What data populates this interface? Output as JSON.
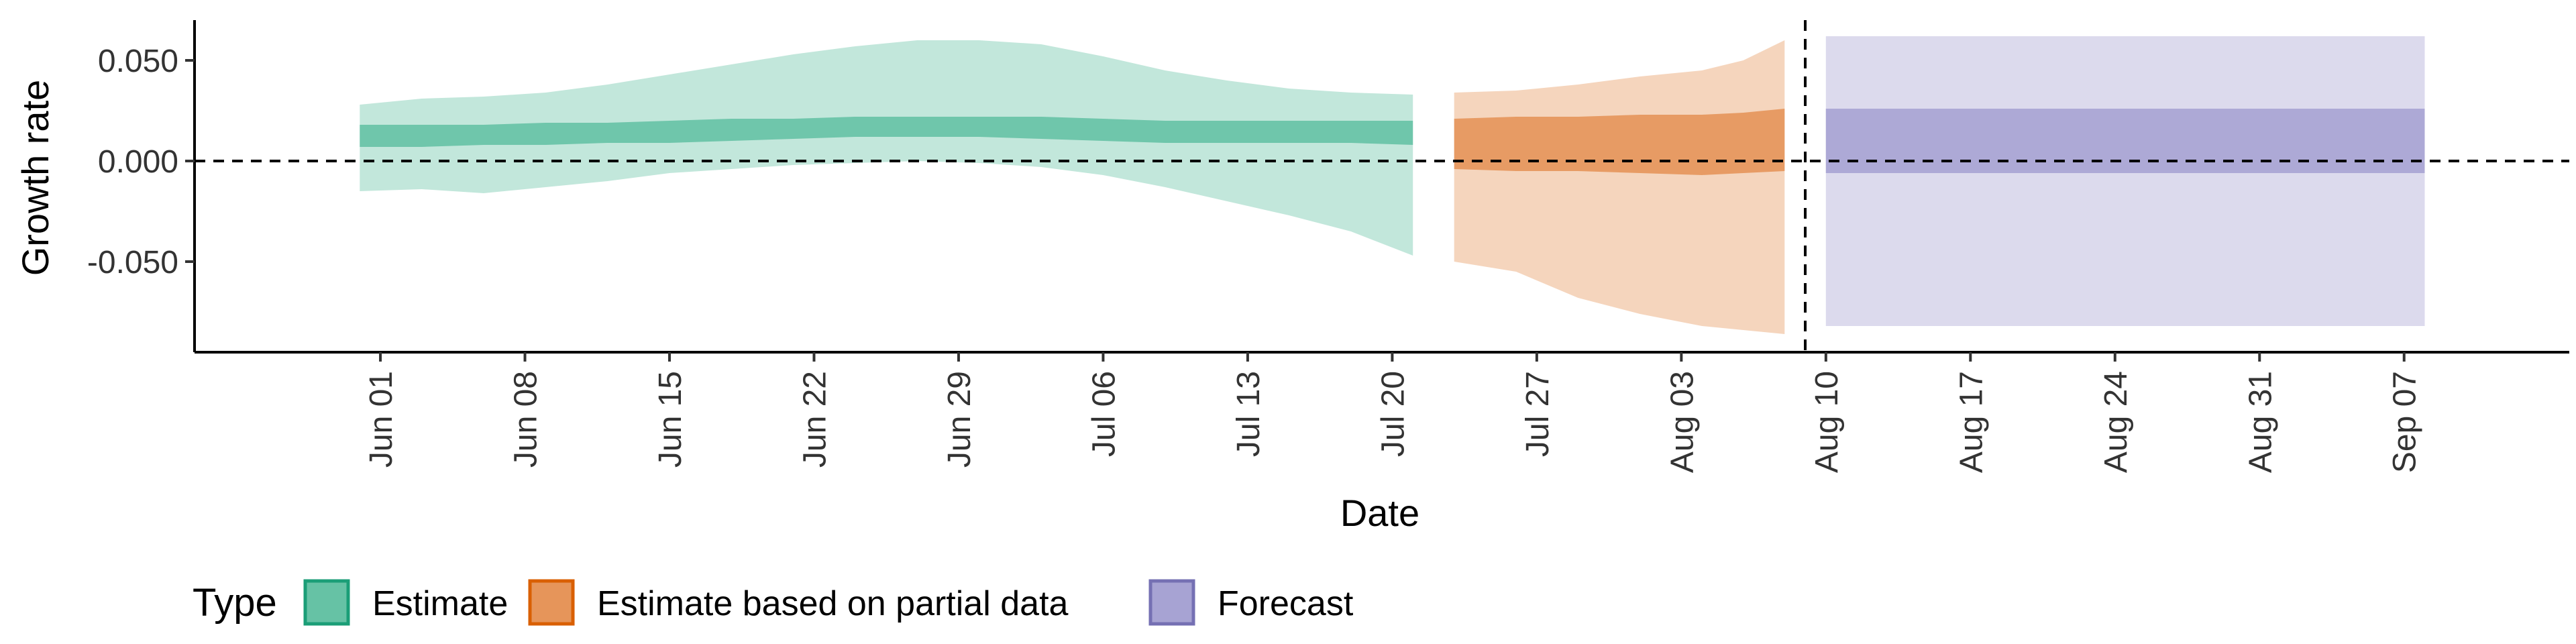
{
  "chart_data": {
    "type": "area",
    "xlabel": "Date",
    "ylabel": "Growth rate",
    "x_type": "date",
    "xlim": [
      "2020-05-23",
      "2020-09-15"
    ],
    "ylim": [
      -0.095,
      0.07
    ],
    "y_ticks": [
      -0.05,
      0.0,
      0.05
    ],
    "y_tick_labels": [
      "-0.050",
      "0.000",
      "0.050"
    ],
    "x_ticks": [
      "2020-06-01",
      "2020-06-08",
      "2020-06-15",
      "2020-06-22",
      "2020-06-29",
      "2020-07-06",
      "2020-07-13",
      "2020-07-20",
      "2020-07-27",
      "2020-08-03",
      "2020-08-10",
      "2020-08-17",
      "2020-08-24",
      "2020-08-31",
      "2020-09-07"
    ],
    "x_tick_labels": [
      "Jun 01",
      "Jun 08",
      "Jun 15",
      "Jun 22",
      "Jun 29",
      "Jul 06",
      "Jul 13",
      "Jul 20",
      "Jul 27",
      "Aug 03",
      "Aug 10",
      "Aug 17",
      "Aug 24",
      "Aug 31",
      "Sep 07"
    ],
    "reference_lines": [
      {
        "axis": "y",
        "value": 0.0,
        "style": "dashed"
      },
      {
        "axis": "x",
        "value": "2020-08-09",
        "style": "dashed"
      }
    ],
    "grid": false,
    "legend": {
      "title": "Type",
      "position": "bottom-left",
      "entries": [
        "Estimate",
        "Estimate based on partial data",
        "Forecast"
      ]
    },
    "series": [
      {
        "name": "Estimate",
        "color": "#1b9e77",
        "fill": "#66c2a5",
        "dates": [
          "2020-05-31",
          "2020-06-03",
          "2020-06-06",
          "2020-06-09",
          "2020-06-12",
          "2020-06-15",
          "2020-06-18",
          "2020-06-21",
          "2020-06-24",
          "2020-06-27",
          "2020-06-30",
          "2020-07-03",
          "2020-07-06",
          "2020-07-09",
          "2020-07-12",
          "2020-07-15",
          "2020-07-18",
          "2020-07-21"
        ],
        "lower_90": [
          -0.015,
          -0.014,
          -0.016,
          -0.013,
          -0.01,
          -0.006,
          -0.004,
          -0.002,
          -0.001,
          0.0,
          -0.001,
          -0.003,
          -0.007,
          -0.013,
          -0.02,
          -0.027,
          -0.035,
          -0.047
        ],
        "lower_50": [
          0.007,
          0.007,
          0.008,
          0.008,
          0.009,
          0.009,
          0.01,
          0.011,
          0.012,
          0.012,
          0.012,
          0.011,
          0.01,
          0.009,
          0.009,
          0.009,
          0.009,
          0.008
        ],
        "upper_50": [
          0.018,
          0.018,
          0.018,
          0.019,
          0.019,
          0.02,
          0.021,
          0.021,
          0.022,
          0.022,
          0.022,
          0.022,
          0.021,
          0.02,
          0.02,
          0.02,
          0.02,
          0.02
        ],
        "upper_90": [
          0.028,
          0.031,
          0.032,
          0.034,
          0.038,
          0.043,
          0.048,
          0.053,
          0.057,
          0.06,
          0.06,
          0.058,
          0.052,
          0.045,
          0.04,
          0.036,
          0.034,
          0.033
        ]
      },
      {
        "name": "Estimate based on partial data",
        "color": "#d95f02",
        "fill": "#e6955a",
        "dates": [
          "2020-07-23",
          "2020-07-26",
          "2020-07-29",
          "2020-08-01",
          "2020-08-04",
          "2020-08-06",
          "2020-08-08"
        ],
        "lower_90": [
          -0.05,
          -0.055,
          -0.068,
          -0.076,
          -0.082,
          -0.084,
          -0.086
        ],
        "lower_50": [
          -0.004,
          -0.005,
          -0.005,
          -0.006,
          -0.007,
          -0.006,
          -0.005
        ],
        "upper_50": [
          0.021,
          0.022,
          0.022,
          0.023,
          0.023,
          0.024,
          0.026
        ],
        "upper_90": [
          0.034,
          0.035,
          0.038,
          0.042,
          0.045,
          0.05,
          0.06
        ]
      },
      {
        "name": "Forecast",
        "color": "#7570b3",
        "fill": "#a7a3d3",
        "dates": [
          "2020-08-10",
          "2020-09-08"
        ],
        "lower_90": [
          -0.082,
          -0.082
        ],
        "lower_50": [
          -0.006,
          -0.006
        ],
        "upper_50": [
          0.026,
          0.026
        ],
        "upper_90": [
          0.062,
          0.062
        ]
      }
    ]
  }
}
